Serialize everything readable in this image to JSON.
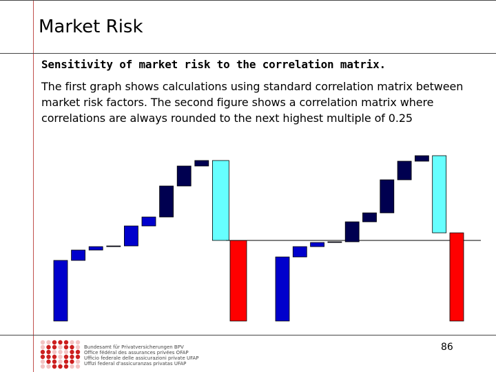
{
  "slide": {
    "title": "Market Risk",
    "subtitle": "Sensitivity of market risk to the correlation matrix.",
    "body": "The first graph shows calculations using standard correlation matrix between market risk factors. The second figure shows a correlation matrix where correlations are always rounded to the next highest multiple of 0.25",
    "page_number": "86"
  },
  "footer": {
    "org_lines": [
      "Bundesamt für Privatversicherungen BPV",
      "Office fédéral des assurances privées OFAP",
      "Ufficio federale delle assicurazioni private UFAP",
      "Uffizi federal d'assicuranzas privatas UFAP"
    ]
  },
  "colors": {
    "accent_line": "#c0504d",
    "blue": "#0000cc",
    "navy": "#000050",
    "cyan": "#66ffff",
    "red": "#ff0000"
  },
  "chart_data": [
    {
      "type": "waterfall",
      "title": "",
      "ylim": [
        0,
        240
      ],
      "reference_line": 117,
      "bars": [
        {
          "base": 0,
          "top": 88,
          "color": "blue"
        },
        {
          "base": 88,
          "top": 103,
          "color": "blue"
        },
        {
          "base": 103,
          "top": 108,
          "color": "blue"
        },
        {
          "base": 108,
          "top": 109,
          "color": "navy"
        },
        {
          "base": 109,
          "top": 138,
          "color": "blue"
        },
        {
          "base": 138,
          "top": 151,
          "color": "blue"
        },
        {
          "base": 151,
          "top": 196,
          "color": "navy"
        },
        {
          "base": 196,
          "top": 225,
          "color": "navy"
        },
        {
          "base": 225,
          "top": 233,
          "color": "navy"
        },
        {
          "base": 117,
          "top": 233,
          "color": "cyan"
        },
        {
          "base": 0,
          "top": 117,
          "color": "red"
        }
      ]
    },
    {
      "type": "waterfall",
      "title": "",
      "ylim": [
        0,
        240
      ],
      "reference_line": 117,
      "bars": [
        {
          "base": 0,
          "top": 93,
          "color": "blue"
        },
        {
          "base": 93,
          "top": 108,
          "color": "blue"
        },
        {
          "base": 108,
          "top": 114,
          "color": "blue"
        },
        {
          "base": 114,
          "top": 115,
          "color": "navy"
        },
        {
          "base": 115,
          "top": 144,
          "color": "navy"
        },
        {
          "base": 144,
          "top": 157,
          "color": "navy"
        },
        {
          "base": 157,
          "top": 205,
          "color": "navy"
        },
        {
          "base": 205,
          "top": 232,
          "color": "navy"
        },
        {
          "base": 232,
          "top": 240,
          "color": "navy"
        },
        {
          "base": 128,
          "top": 240,
          "color": "cyan"
        },
        {
          "base": 0,
          "top": 128,
          "color": "red"
        }
      ]
    }
  ]
}
